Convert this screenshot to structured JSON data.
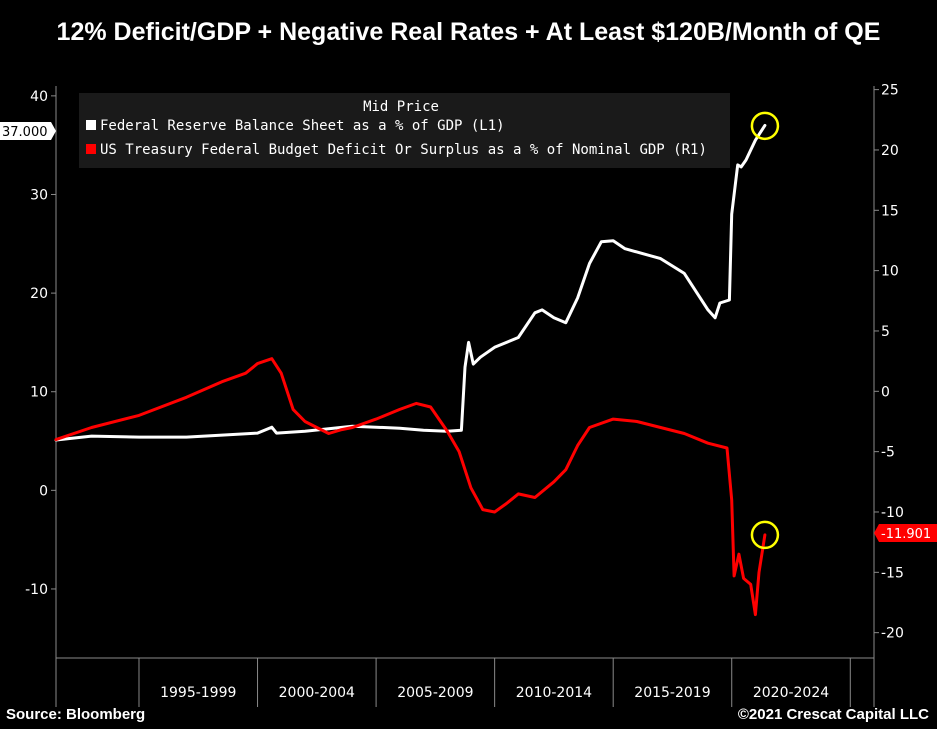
{
  "title": "12% Deficit/GDP + Negative Real Rates + At Least $120B/Month of QE",
  "source": "Source: Bloomberg",
  "copyright": "©2021 Crescat Capital LLC",
  "colors": {
    "background": "#000000",
    "series1": "#ffffff",
    "series2": "#ff0000",
    "highlight": "#ffff00"
  },
  "chart_data": {
    "type": "line",
    "title": "12% Deficit/GDP + Negative Real Rates + At Least $120B/Month of QE",
    "legend_title": "Mid Price",
    "legend_position": "top-left",
    "grid": false,
    "x_range": [
      1991.5,
      2026
    ],
    "x_categories": [
      "1995-1999",
      "2000-2004",
      "2005-2009",
      "2010-2014",
      "2015-2019",
      "2020-2024"
    ],
    "category_bounds": [
      1995,
      2000,
      2005,
      2010,
      2015,
      2020,
      2025
    ],
    "y_left": {
      "range": [
        -17,
        41
      ],
      "ticks": [
        40,
        30,
        20,
        10,
        0,
        -10
      ]
    },
    "y_right": {
      "range": [
        -22.1,
        25.3
      ],
      "ticks": [
        25,
        20,
        15,
        10,
        5,
        0,
        -5,
        -10,
        -15,
        -20
      ]
    },
    "last_value_tags": [
      {
        "label": "37.000",
        "axis": "left",
        "value": 37.0,
        "color": "#ffffff",
        "text_color": "#000000"
      },
      {
        "label": "-11.901",
        "axis": "right",
        "value": -11.901,
        "color": "#ff0000",
        "text_color": "#ffffff"
      }
    ],
    "series": [
      {
        "name": "Federal Reserve Balance Sheet as a % of GDP  (L1)",
        "axis": "left",
        "color": "#ffffff",
        "points": [
          [
            1991.5,
            5.1
          ],
          [
            1993.0,
            5.5
          ],
          [
            1995.0,
            5.4
          ],
          [
            1997.0,
            5.4
          ],
          [
            1998.5,
            5.6
          ],
          [
            2000.0,
            5.8
          ],
          [
            2000.6,
            6.4
          ],
          [
            2000.8,
            5.8
          ],
          [
            2002.0,
            6.0
          ],
          [
            2004.0,
            6.5
          ],
          [
            2006.0,
            6.3
          ],
          [
            2007.0,
            6.1
          ],
          [
            2008.0,
            6.0
          ],
          [
            2008.6,
            6.1
          ],
          [
            2008.75,
            12.5
          ],
          [
            2008.9,
            15.0
          ],
          [
            2009.1,
            12.8
          ],
          [
            2009.4,
            13.5
          ],
          [
            2010.0,
            14.5
          ],
          [
            2011.0,
            15.5
          ],
          [
            2011.7,
            18.0
          ],
          [
            2012.0,
            18.3
          ],
          [
            2012.5,
            17.5
          ],
          [
            2013.0,
            17.0
          ],
          [
            2013.5,
            19.5
          ],
          [
            2014.0,
            23.0
          ],
          [
            2014.5,
            25.2
          ],
          [
            2015.0,
            25.3
          ],
          [
            2015.5,
            24.5
          ],
          [
            2017.0,
            23.5
          ],
          [
            2018.0,
            22.0
          ],
          [
            2019.0,
            18.3
          ],
          [
            2019.3,
            17.5
          ],
          [
            2019.5,
            19.0
          ],
          [
            2019.9,
            19.3
          ],
          [
            2020.0,
            28.0
          ],
          [
            2020.25,
            33.0
          ],
          [
            2020.4,
            32.8
          ],
          [
            2020.6,
            33.5
          ],
          [
            2021.0,
            35.5
          ],
          [
            2021.4,
            37.0
          ]
        ]
      },
      {
        "name": "US Treasury Federal Budget Deficit Or Surplus as a % of Nominal GDP  (R1)",
        "axis": "right",
        "color": "#ff0000",
        "points": [
          [
            1991.5,
            -4.0
          ],
          [
            1993.0,
            -3.0
          ],
          [
            1995.0,
            -2.0
          ],
          [
            1997.0,
            -0.5
          ],
          [
            1998.5,
            0.8
          ],
          [
            1999.5,
            1.5
          ],
          [
            2000.0,
            2.3
          ],
          [
            2000.6,
            2.7
          ],
          [
            2001.0,
            1.5
          ],
          [
            2001.5,
            -1.5
          ],
          [
            2002.0,
            -2.5
          ],
          [
            2002.5,
            -3.0
          ],
          [
            2003.0,
            -3.5
          ],
          [
            2003.5,
            -3.2
          ],
          [
            2004.0,
            -3.0
          ],
          [
            2005.0,
            -2.3
          ],
          [
            2006.0,
            -1.5
          ],
          [
            2006.7,
            -1.0
          ],
          [
            2007.3,
            -1.3
          ],
          [
            2008.0,
            -3.3
          ],
          [
            2008.5,
            -5.0
          ],
          [
            2009.0,
            -8.0
          ],
          [
            2009.5,
            -9.8
          ],
          [
            2010.0,
            -10.0
          ],
          [
            2010.5,
            -9.3
          ],
          [
            2011.0,
            -8.5
          ],
          [
            2011.7,
            -8.8
          ],
          [
            2012.5,
            -7.5
          ],
          [
            2013.0,
            -6.5
          ],
          [
            2013.5,
            -4.5
          ],
          [
            2014.0,
            -3.0
          ],
          [
            2015.0,
            -2.3
          ],
          [
            2016.0,
            -2.5
          ],
          [
            2017.0,
            -3.0
          ],
          [
            2018.0,
            -3.5
          ],
          [
            2019.0,
            -4.3
          ],
          [
            2019.8,
            -4.7
          ],
          [
            2020.0,
            -9.0
          ],
          [
            2020.1,
            -15.3
          ],
          [
            2020.3,
            -13.5
          ],
          [
            2020.5,
            -15.5
          ],
          [
            2020.8,
            -16.0
          ],
          [
            2021.0,
            -18.5
          ],
          [
            2021.15,
            -15.0
          ],
          [
            2021.4,
            -11.9
          ]
        ]
      }
    ],
    "annotations": [
      {
        "type": "circle",
        "x": 2021.4,
        "y": 22.0,
        "axis": "right",
        "color": "#ffff00"
      },
      {
        "type": "circle",
        "x": 2021.4,
        "y": -11.9,
        "axis": "right",
        "color": "#ffff00"
      }
    ]
  }
}
